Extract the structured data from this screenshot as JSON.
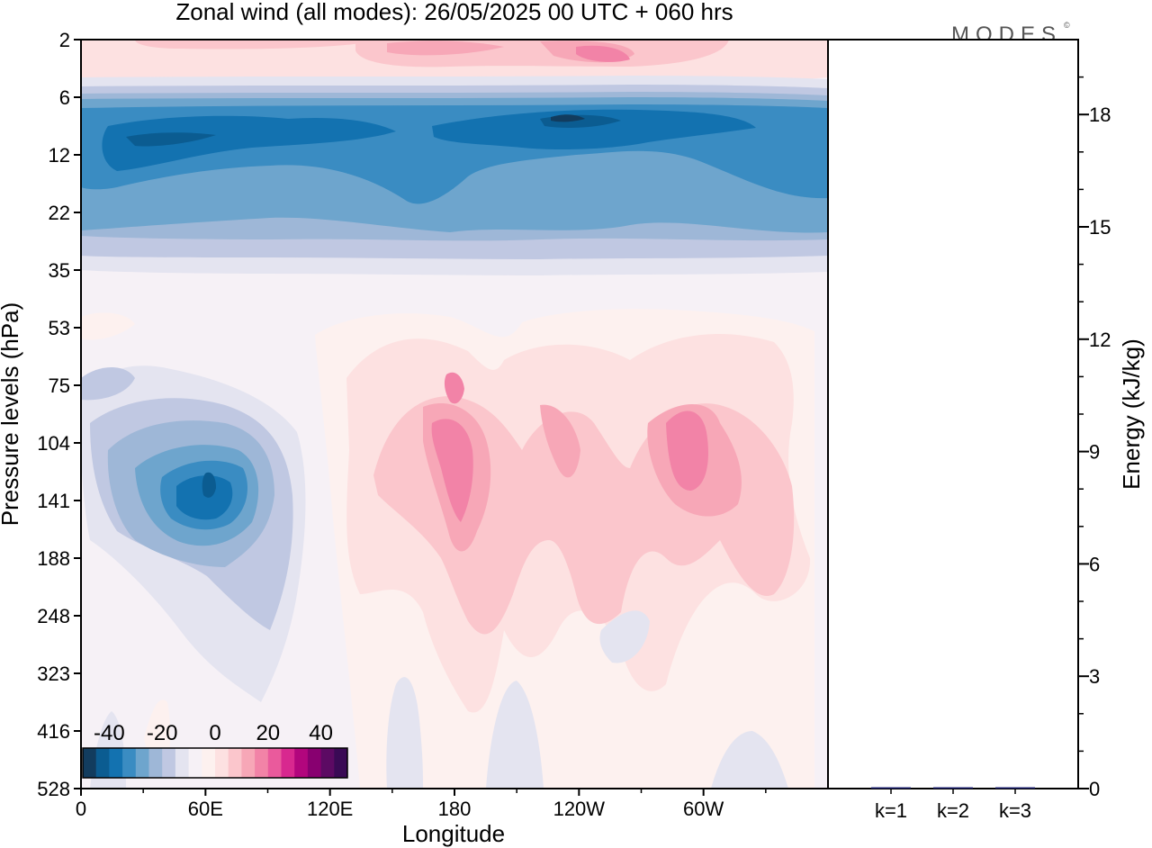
{
  "title": "Zonal wind (all modes):  26/05/2025  00 UTC  + 060 hrs",
  "logo_text": "MODES",
  "logo_mark": "©",
  "chart_data": [
    {
      "type": "heatmap",
      "xlabel": "Longitude",
      "ylabel": "Pressure levels (hPa)",
      "x_ticks": [
        "0",
        "60E",
        "120E",
        "180",
        "120W",
        "60W"
      ],
      "x_tick_lon": [
        0,
        60,
        120,
        180,
        240,
        300
      ],
      "xlim": [
        0,
        360
      ],
      "y_ticks": [
        "2",
        "6",
        "12",
        "22",
        "35",
        "53",
        "75",
        "104",
        "141",
        "188",
        "248",
        "323",
        "416",
        "528"
      ],
      "y_scale": "model levels, evenly spaced ticks",
      "colorbar": {
        "tick_labels": [
          "-40",
          "-20",
          "0",
          "20",
          "40"
        ],
        "tick_values": [
          -40,
          -20,
          0,
          20,
          40
        ],
        "range": [
          -50,
          50
        ],
        "step": 5,
        "colors": [
          "#123c5e",
          "#0b5c91",
          "#1372b0",
          "#3a8cc2",
          "#6ea5cd",
          "#9eb7d7",
          "#c0c8e2",
          "#e4e4f0",
          "#f6f1f6",
          "#fdf1ef",
          "#fde1e1",
          "#fbc6cc",
          "#f7a7b7",
          "#f283a7",
          "#ea5a9c",
          "#d8288f",
          "#b2067d",
          "#880070",
          "#5c0a63",
          "#3a0a55"
        ]
      },
      "features": [
        {
          "name": "upper easterly jet",
          "lon": [
            0,
            360
          ],
          "level_hPa": [
            6,
            30
          ],
          "min_value": -40
        },
        {
          "name": "lower-stratosphere easterly core",
          "lon": [
            30,
            100
          ],
          "level_hPa": [
            75,
            248
          ],
          "min_value": -35
        },
        {
          "name": "westerly maximum near dateline",
          "lon": [
            165,
            200
          ],
          "level_hPa": [
            104,
            188
          ],
          "max_value": 25
        },
        {
          "name": "westerly maximum",
          "lon": [
            275,
            300
          ],
          "level_hPa": [
            104,
            141
          ],
          "max_value": 25
        },
        {
          "name": "upper westerly band",
          "lon": [
            120,
            300
          ],
          "level_hPa": [
            2,
            4
          ],
          "max_value": 25
        }
      ]
    },
    {
      "type": "bar",
      "categories": [
        "k=1",
        "k=2",
        "k=3"
      ],
      "values": [
        0.03,
        0.01,
        0.01
      ],
      "ylabel": "Energy (kJ/kg)",
      "ylim": [
        0,
        20
      ],
      "y_ticks": [
        0,
        3,
        6,
        9,
        12,
        15,
        18
      ],
      "bar_color": "#1b1f6e"
    }
  ]
}
